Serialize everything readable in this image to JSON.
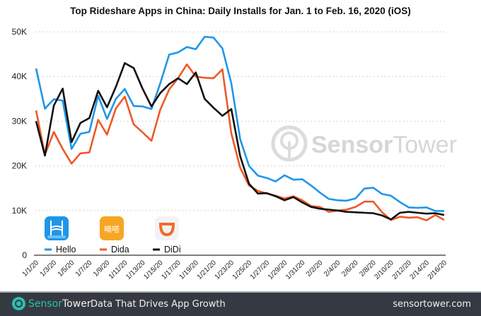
{
  "chart_data": {
    "type": "line",
    "title": "Top Rideshare Apps in China: Daily Installs for Jan. 1 to Feb. 16, 2020 (iOS)",
    "xlabel": "",
    "ylabel": "",
    "ylim": [
      0,
      50000
    ],
    "yticks": [
      0,
      10000,
      20000,
      30000,
      40000,
      50000
    ],
    "ytick_labels": [
      "0",
      "10K",
      "20K",
      "30K",
      "40K",
      "50K"
    ],
    "grid": true,
    "legend_position": "bottom-left",
    "x": [
      "1/1/20",
      "1/2/20",
      "1/3/20",
      "1/4/20",
      "1/5/20",
      "1/6/20",
      "1/7/20",
      "1/8/20",
      "1/9/20",
      "1/10/20",
      "1/11/20",
      "1/12/20",
      "1/13/20",
      "1/14/20",
      "1/15/20",
      "1/16/20",
      "1/17/20",
      "1/18/20",
      "1/19/20",
      "1/20/20",
      "1/21/20",
      "1/22/20",
      "1/23/20",
      "1/24/20",
      "1/25/20",
      "1/26/20",
      "1/27/20",
      "1/28/20",
      "1/29/20",
      "1/30/20",
      "1/31/20",
      "2/1/20",
      "2/2/20",
      "2/3/20",
      "2/4/20",
      "2/5/20",
      "2/6/20",
      "2/7/20",
      "2/8/20",
      "2/9/20",
      "2/10/20",
      "2/11/20",
      "2/12/20",
      "2/13/20",
      "2/14/20",
      "2/15/20",
      "2/16/20"
    ],
    "xtick_labels": [
      "1/1/20",
      "1/3/20",
      "1/5/20",
      "1/7/20",
      "1/9/20",
      "1/11/20",
      "1/13/20",
      "1/15/20",
      "1/17/20",
      "1/19/20",
      "1/21/20",
      "1/23/20",
      "1/25/20",
      "1/27/20",
      "1/29/20",
      "1/31/20",
      "2/2/20",
      "2/4/20",
      "2/6/20",
      "2/8/20",
      "2/10/20",
      "2/12/20",
      "2/14/20",
      "2/16/20"
    ],
    "series": [
      {
        "name": "Hello",
        "color": "#1f96e8",
        "values": [
          41800,
          32800,
          34900,
          34600,
          23800,
          27200,
          27600,
          35700,
          30500,
          35000,
          37200,
          33400,
          33300,
          32700,
          38500,
          44900,
          45400,
          46600,
          46100,
          48900,
          48700,
          46300,
          38500,
          26000,
          20000,
          17800,
          17300,
          16500,
          17900,
          16900,
          17000,
          15600,
          14000,
          12600,
          12300,
          12200,
          12700,
          14900,
          15100,
          13700,
          13300,
          11900,
          10700,
          10600,
          10700,
          9900,
          9900
        ]
      },
      {
        "name": "Dida",
        "color": "#f0582a",
        "values": [
          32400,
          22500,
          27600,
          23800,
          20500,
          22800,
          23000,
          30300,
          27000,
          32900,
          35500,
          29300,
          27500,
          25600,
          32600,
          37100,
          39600,
          42700,
          40000,
          39700,
          39600,
          41600,
          27300,
          19600,
          15600,
          14400,
          13800,
          13300,
          12700,
          13200,
          12300,
          11000,
          10800,
          9700,
          10000,
          10200,
          10800,
          12000,
          12000,
          9600,
          7900,
          8600,
          8400,
          8500,
          7800,
          9000,
          7900
        ]
      },
      {
        "name": "DiDi",
        "color": "#111111",
        "values": [
          30000,
          22300,
          33500,
          37300,
          25300,
          29600,
          30700,
          36800,
          33100,
          37700,
          43000,
          41900,
          37300,
          33300,
          36300,
          38300,
          39600,
          38300,
          40900,
          35000,
          33000,
          31200,
          32700,
          22200,
          16000,
          13800,
          13900,
          13200,
          12300,
          13000,
          11800,
          10800,
          10400,
          10200,
          10000,
          9700,
          9600,
          9500,
          9400,
          8900,
          8000,
          9500,
          9700,
          9500,
          9300,
          9400,
          9000
        ]
      }
    ]
  },
  "legend": [
    {
      "name": "Hello",
      "icon": "hello-app-icon",
      "color": "#1f96e8"
    },
    {
      "name": "Dida",
      "icon": "dida-app-icon",
      "color": "#f0582a",
      "icon_text": "嘀嗒"
    },
    {
      "name": "DiDi",
      "icon": "didi-app-icon",
      "color": "#111111"
    }
  ],
  "watermark": {
    "bold": "Sensor",
    "light": "Tower",
    "icon": "sensortower-logo-icon"
  },
  "footer": {
    "brand_sensor": "Sensor",
    "brand_tower": "Tower",
    "tagline": "Data That Drives App Growth",
    "site": "sensortower.com",
    "accent": "#2bbfae",
    "background": "#353a42"
  }
}
